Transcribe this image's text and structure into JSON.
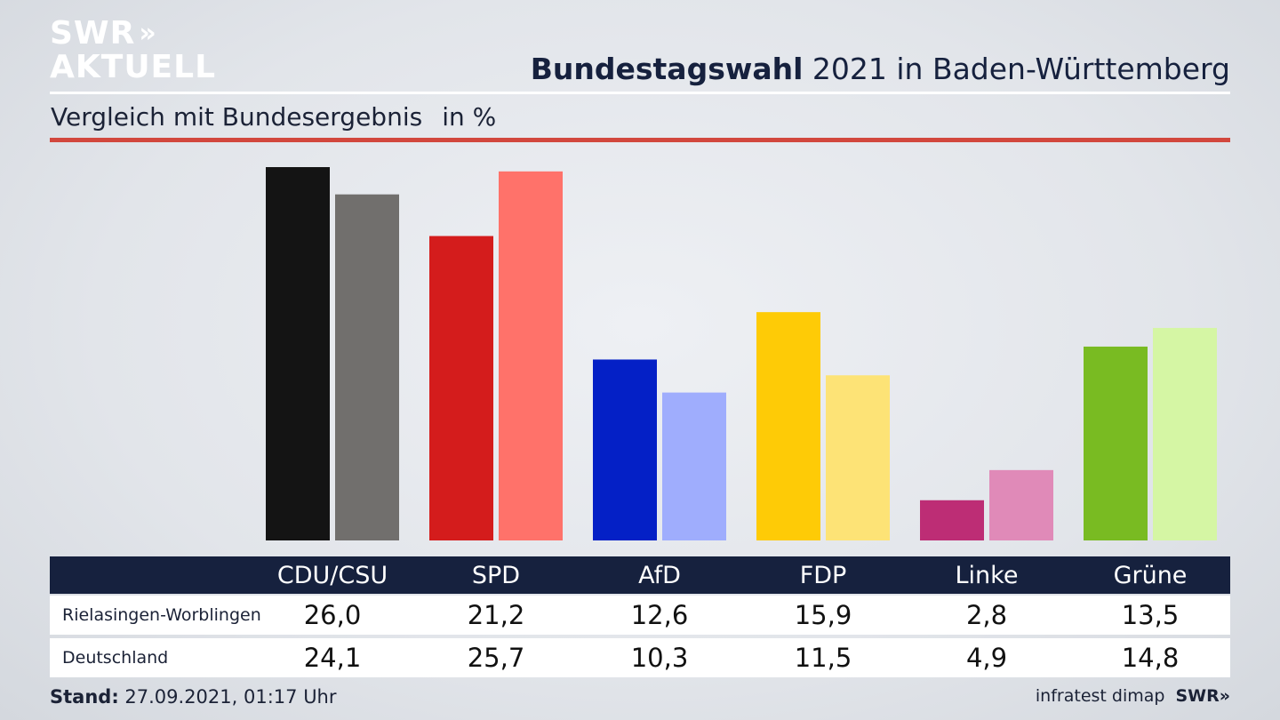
{
  "brand": {
    "logo_line1": "SWR",
    "logo_line2": "AKTUELL",
    "logo_arrows": "»"
  },
  "header": {
    "title_bold": "Bundestagswahl",
    "title_rest": " 2021 in Baden-Württemberg",
    "subtitle": "Vergleich mit Bundesergebnis",
    "unit": "in %"
  },
  "footer": {
    "stand_label": "Stand:",
    "stand_value": "27.09.2021, 01:17 Uhr",
    "source": "infratest dimap",
    "source_logo": "SWR»"
  },
  "chart_data": {
    "type": "bar",
    "title": "Bundestagswahl 2021 in Baden-Württemberg",
    "subtitle": "Vergleich mit Bundesergebnis",
    "ylabel": "in %",
    "categories": [
      "CDU/CSU",
      "SPD",
      "AfD",
      "FDP",
      "Linke",
      "Grüne"
    ],
    "series": [
      {
        "name": "Rielasingen-Worblingen",
        "values_text": [
          "26,0",
          "21,2",
          "12,6",
          "15,9",
          "2,8",
          "13,5"
        ],
        "values": [
          26.0,
          21.2,
          12.6,
          15.9,
          2.8,
          13.5
        ]
      },
      {
        "name": "Deutschland",
        "values_text": [
          "24,1",
          "25,7",
          "10,3",
          "11,5",
          "4,9",
          "14,8"
        ],
        "values": [
          24.1,
          25.7,
          10.3,
          11.5,
          4.9,
          14.8
        ]
      }
    ],
    "colors": {
      "primary": [
        "#141414",
        "#d41c1c",
        "#0420c6",
        "#fecb06",
        "#bd2d75",
        "#79bb22"
      ],
      "secondary": [
        "#716f6d",
        "#ff726a",
        "#9fadfd",
        "#fde376",
        "#e08ab8",
        "#d5f6a4"
      ]
    },
    "ylim": [
      0,
      26.0
    ],
    "grid": false,
    "legend": "none"
  }
}
